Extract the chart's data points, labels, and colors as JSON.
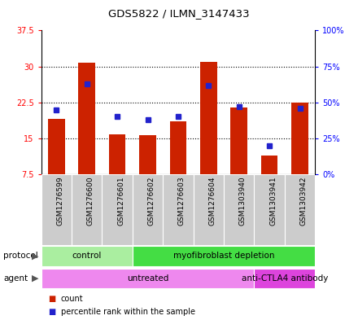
{
  "title": "GDS5822 / ILMN_3147433",
  "samples": [
    "GSM1276599",
    "GSM1276600",
    "GSM1276601",
    "GSM1276602",
    "GSM1276603",
    "GSM1276604",
    "GSM1303940",
    "GSM1303941",
    "GSM1303942"
  ],
  "counts": [
    19.0,
    30.8,
    15.8,
    15.7,
    18.5,
    31.0,
    21.5,
    11.5,
    22.5
  ],
  "percentiles": [
    45,
    63,
    40,
    38,
    40,
    62,
    47,
    20,
    46
  ],
  "ylim_left": [
    7.5,
    37.5
  ],
  "yticks_left": [
    7.5,
    15.0,
    22.5,
    30.0,
    37.5
  ],
  "ylim_right": [
    0,
    100
  ],
  "yticks_right": [
    0,
    25,
    50,
    75,
    100
  ],
  "bar_color": "#CC2200",
  "dot_color": "#2222CC",
  "bar_bottom": 7.5,
  "protocol_groups": [
    {
      "label": "control",
      "start": 0,
      "end": 3,
      "color": "#AAEEA0"
    },
    {
      "label": "myofibroblast depletion",
      "start": 3,
      "end": 9,
      "color": "#44DD44"
    }
  ],
  "agent_groups": [
    {
      "label": "untreated",
      "start": 0,
      "end": 7,
      "color": "#EE88EE"
    },
    {
      "label": "anti-CTLA4 antibody",
      "start": 7,
      "end": 9,
      "color": "#DD44DD"
    }
  ],
  "sample_bg_color": "#CCCCCC",
  "plot_bg_color": "#FFFFFF",
  "legend_count_label": "count",
  "legend_percentile_label": "percentile rank within the sample"
}
